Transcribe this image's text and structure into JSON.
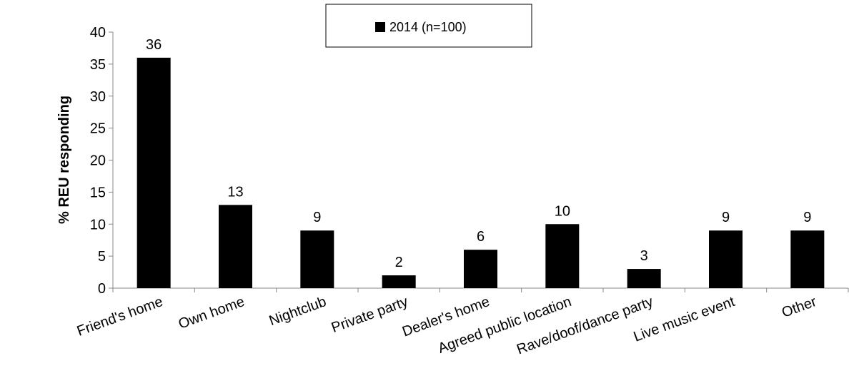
{
  "chart_data": {
    "type": "bar",
    "title": "",
    "xlabel": "",
    "ylabel": "% REU responding",
    "ylim": [
      0,
      40
    ],
    "yticks": [
      0,
      5,
      10,
      15,
      20,
      25,
      30,
      35,
      40
    ],
    "categories": [
      "Friend's home",
      "Own home",
      "Nightclub",
      "Private party",
      "Dealer's home",
      "Agreed public location",
      "Rave/doof/dance party",
      "Live music event",
      "Other"
    ],
    "series": [
      {
        "name": "2014 (n=100)",
        "values": [
          36,
          13,
          9,
          2,
          6,
          10,
          3,
          9,
          9
        ],
        "color": "#000000"
      }
    ],
    "data_labels": true,
    "grid": false,
    "legend_position": "top-center"
  }
}
